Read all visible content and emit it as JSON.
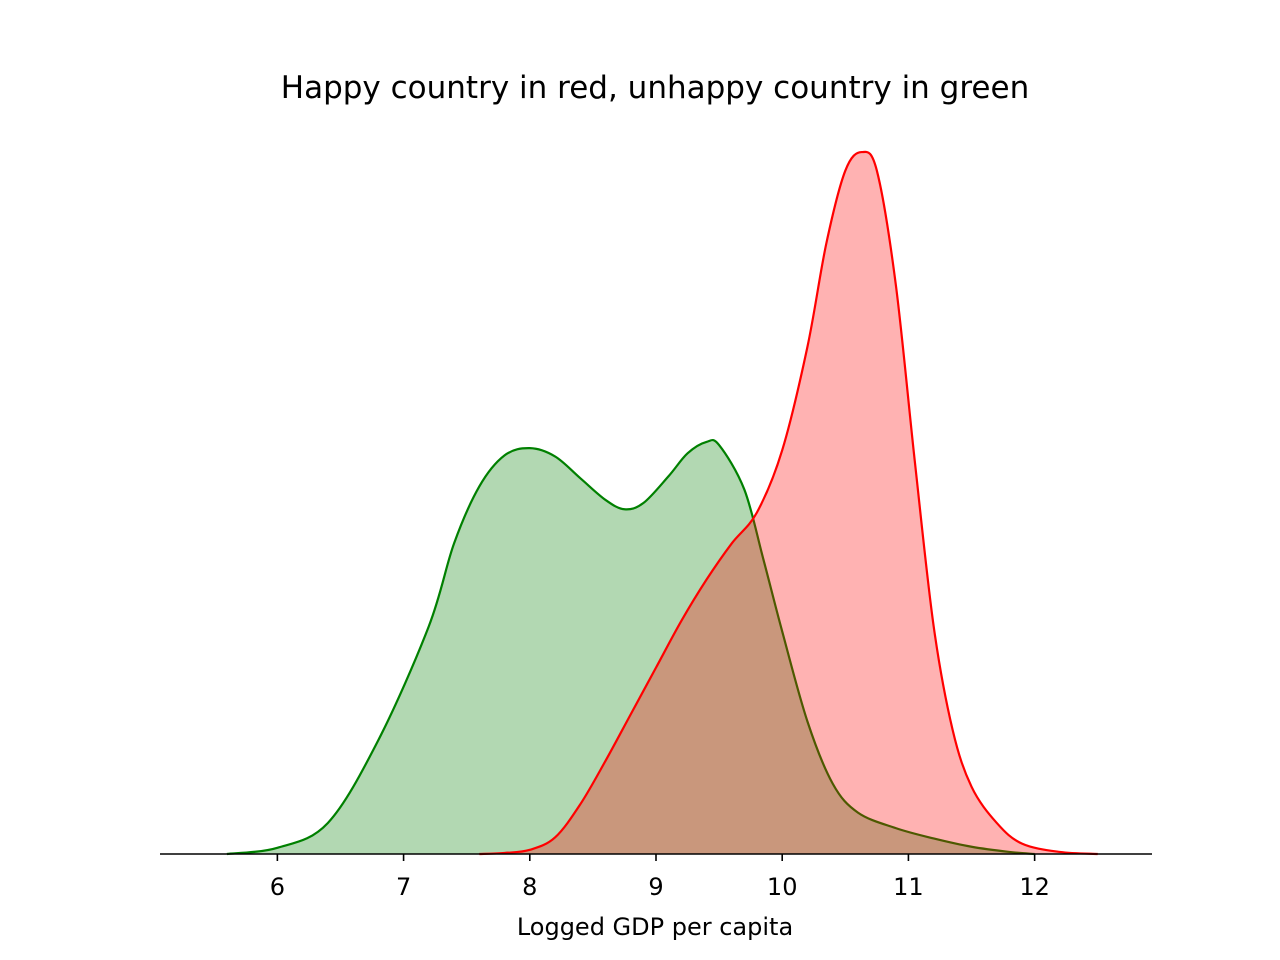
{
  "chart_data": {
    "type": "area",
    "title": "Happy country in red, unhappy country in green",
    "xlabel": "Logged GDP per capita",
    "ylabel": "",
    "xlim": [
      5.07,
      12.93
    ],
    "ylim": [
      0,
      0.68
    ],
    "x_ticks": [
      6,
      7,
      8,
      9,
      10,
      11,
      12
    ],
    "grid": false,
    "y_axis_visible": false,
    "series": [
      {
        "color": "#008000",
        "fill_color": "#b2d8b2",
        "points": [
          [
            5.6,
            0.0
          ],
          [
            6.0,
            0.006
          ],
          [
            6.4,
            0.03
          ],
          [
            6.8,
            0.11
          ],
          [
            7.2,
            0.22
          ],
          [
            7.4,
            0.3
          ],
          [
            7.6,
            0.355
          ],
          [
            7.8,
            0.385
          ],
          [
            8.0,
            0.392
          ],
          [
            8.2,
            0.384
          ],
          [
            8.4,
            0.363
          ],
          [
            8.6,
            0.342
          ],
          [
            8.75,
            0.333
          ],
          [
            8.9,
            0.339
          ],
          [
            9.1,
            0.365
          ],
          [
            9.25,
            0.387
          ],
          [
            9.4,
            0.398
          ],
          [
            9.5,
            0.395
          ],
          [
            9.7,
            0.352
          ],
          [
            9.85,
            0.285
          ],
          [
            10.0,
            0.215
          ],
          [
            10.2,
            0.128
          ],
          [
            10.4,
            0.068
          ],
          [
            10.6,
            0.04
          ],
          [
            10.9,
            0.025
          ],
          [
            11.2,
            0.015
          ],
          [
            11.5,
            0.007
          ],
          [
            11.8,
            0.002
          ],
          [
            12.0,
            0.0
          ]
        ]
      },
      {
        "color": "#ff0000",
        "fill_color": "#ff0000",
        "points": [
          [
            7.6,
            0.0
          ],
          [
            7.8,
            0.001
          ],
          [
            8.0,
            0.004
          ],
          [
            8.2,
            0.016
          ],
          [
            8.4,
            0.048
          ],
          [
            8.6,
            0.09
          ],
          [
            8.8,
            0.135
          ],
          [
            9.0,
            0.18
          ],
          [
            9.2,
            0.225
          ],
          [
            9.4,
            0.265
          ],
          [
            9.6,
            0.3
          ],
          [
            9.8,
            0.33
          ],
          [
            10.0,
            0.39
          ],
          [
            10.2,
            0.49
          ],
          [
            10.35,
            0.59
          ],
          [
            10.5,
            0.66
          ],
          [
            10.63,
            0.678
          ],
          [
            10.75,
            0.66
          ],
          [
            10.9,
            0.55
          ],
          [
            11.05,
            0.38
          ],
          [
            11.2,
            0.22
          ],
          [
            11.35,
            0.12
          ],
          [
            11.5,
            0.065
          ],
          [
            11.7,
            0.03
          ],
          [
            11.9,
            0.01
          ],
          [
            12.2,
            0.002
          ],
          [
            12.5,
            0.0
          ]
        ]
      }
    ]
  }
}
